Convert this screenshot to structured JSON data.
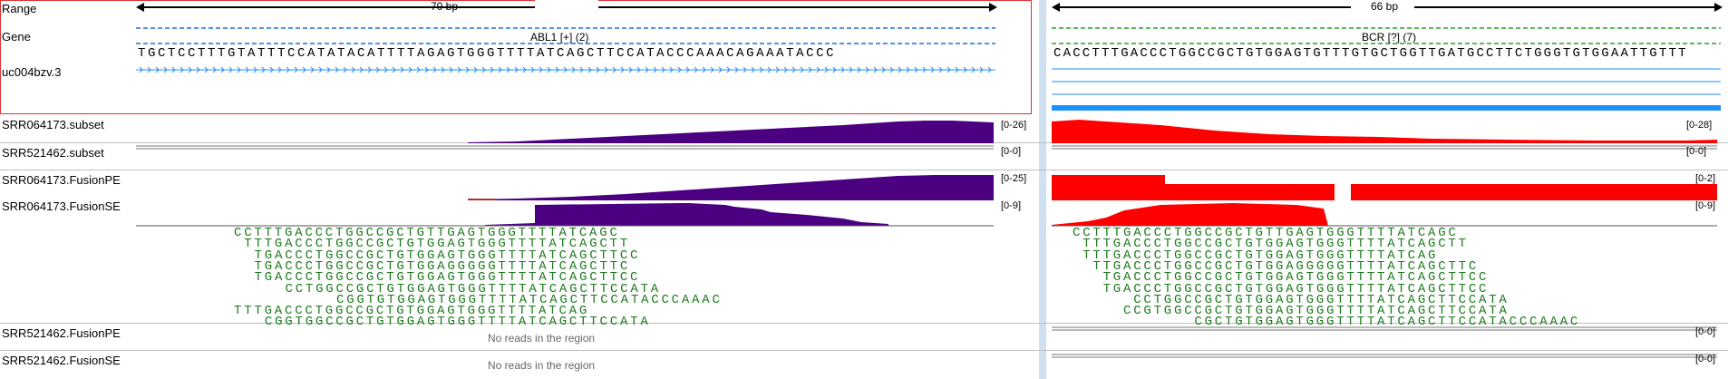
{
  "rows": {
    "range": "Range",
    "gene": "Gene",
    "transcript": "uc004bzv.3",
    "srr064173_subset": "SRR064173.subset",
    "srr521462_subset": "SRR521462.subset",
    "srr064173_fusionpe": "SRR064173.FusionPE",
    "srr064173_fusionse": "SRR064173.FusionSE",
    "srr521462_fusionpe": "SRR521462.FusionPE",
    "srr521462_fusionse": "SRR521462.FusionSE"
  },
  "left": {
    "range_label": "70 bp",
    "gene_label": "ABL1 [+] (2)",
    "sequence": "TGCTCCTTTGTATTTCCATATACATTTTAGAGTGGGTTTTATCAGCTTCCATACCCAAACAGAAATACCC",
    "ranges": {
      "subset": "[0-26]",
      "subset2": "[0-0]",
      "fusionpe": "[0-25]",
      "fusionse": "[0-9]"
    },
    "reads": [
      "CCTTTGACCCTGGCCGCTGTTGAGTGGGTTTTATCAGC",
      " TTTGACCCTGGCCGCTGTGGAGTGGGTTTTATCAGCTT",
      "  TGACCCTGGCCGCTGTGGAGTGGGTTTTATCAGCTTCC",
      "  TGACCCTGGCCGCTGTGGAGGGGGTTTTATCAGCTTC",
      "  TGACCCTGGCCGCTGTGGAGTGGGTTTTATCAGCTTCC",
      "     CCTGGCCGCTGTGGAGTGGGTTTTATCAGCTTCCATA",
      "          CGGTGTGGAGTGGGTTTTATCAGCTTCCATACCCAAAC",
      "TTTGACCCTGGCCGCTGTGGAGTGGGTTTTATCAG",
      "   CGGTGGCCGCTGTGGAGTGGGTTTTATCAGCTTCCATA"
    ],
    "no_reads_pe": "No reads in the region",
    "no_reads_se": "No reads in the region"
  },
  "right": {
    "range_label": "66 bp",
    "gene_label": "BCR [?] (7)",
    "sequence": "CACCTTTGACCCTGGCCGCTGTGGAGTGTTTGTGCTGGTTGATGCCTTCTGGGTGTGGAATTGTTT",
    "ranges": {
      "subset": "[0-28]",
      "subset2": "[0-0]",
      "fusionpe": "[0-2]",
      "fusionse": "[0-9]",
      "pe2": "[0-0]",
      "se2": "[0-0]"
    },
    "reads": [
      "CCTTTGACCCTGGCCGCTGTTGAGTGGGTTTTATCAGC",
      " TTTGACCCTGGCCGCTGTGGAGTGGGTTTTATCAGCTT",
      " TTTGACCCTGGCCGCTGTGGAGTGGGTTTTATCAG",
      "  TTGACCCTGGCCGCTGTGGAGGGGGTTTTATCAGCTTC",
      "   TGACCCTGGCCGCTGTGGAGTGGGTTTTATCAGCTTCC",
      "   TGACCCTGGCCGCTGTGGAGTGGGTTTTATCAGCTTCC",
      "      CCTGGCCGCTGTGGAGTGGGTTTTATCAGCTTCCATA",
      "     CCGTGGCCGCTGTGGAGTGGGTTTTATCAGCTTCCATA",
      "            CGCTGTGGAGTGGGTTTTATCAGCTTCCATACCCAAAC"
    ]
  },
  "colors": {
    "purple": "#4b0082",
    "red": "#ff0000",
    "green": "#1d7a1d",
    "blue_dash": "#1f6fd6",
    "green_dash": "#2aa02a",
    "transcript": "#1e90ff"
  }
}
